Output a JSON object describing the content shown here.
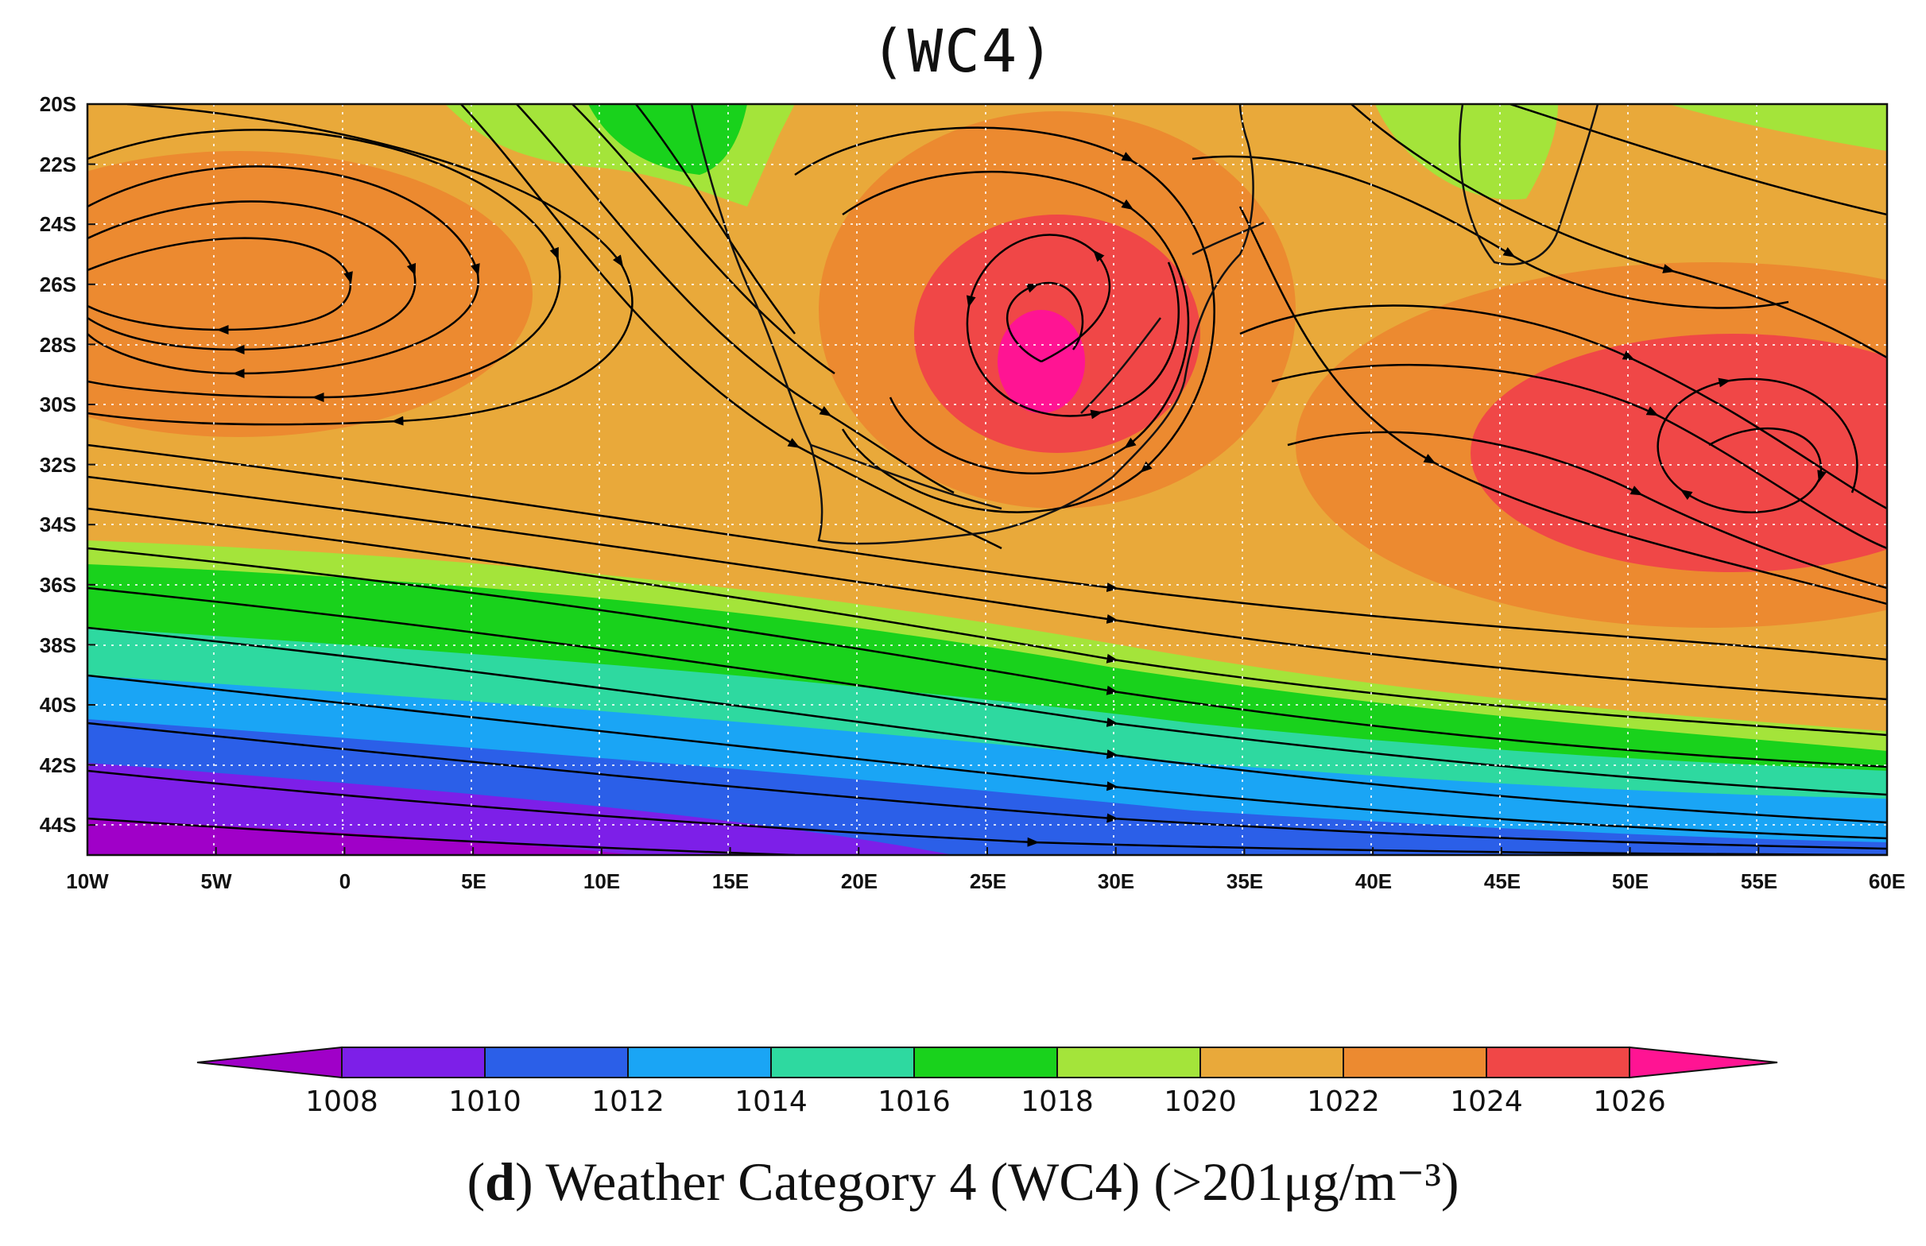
{
  "title": "(WC4)",
  "caption": {
    "open": "(",
    "letter": "d",
    "text": ") Weather Category 4 (WC4) (>201μg/m⁻³)"
  },
  "map": {
    "lon_range": [
      -10,
      60
    ],
    "lat_range": [
      -20,
      -45
    ],
    "x_ticks": [
      "10W",
      "5W",
      "0",
      "5E",
      "10E",
      "15E",
      "20E",
      "25E",
      "30E",
      "35E",
      "40E",
      "45E",
      "50E",
      "55E",
      "60E"
    ],
    "y_ticks": [
      "20S",
      "22S",
      "24S",
      "26S",
      "28S",
      "30S",
      "32S",
      "34S",
      "36S",
      "38S",
      "40S",
      "42S",
      "44S"
    ],
    "grid": "dotted white",
    "overlay": "streamlines"
  },
  "colorbar": {
    "labels": [
      "1008",
      "1010",
      "1012",
      "1014",
      "1016",
      "1018",
      "1020",
      "1022",
      "1024",
      "1026"
    ],
    "colors": [
      "#a000c8",
      "#7d1fe8",
      "#2b5fe8",
      "#1aa5f5",
      "#2ed9a0",
      "#19d21c",
      "#a4e43a",
      "#e9a93a",
      "#ec8a30",
      "#f04747",
      "#ff1493"
    ],
    "extend": "both"
  }
}
